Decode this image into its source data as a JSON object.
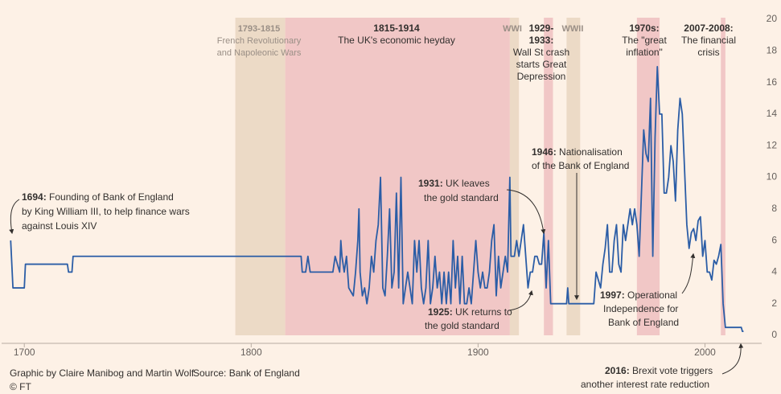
{
  "chart_data": {
    "type": "line",
    "xlim": [
      1690,
      2025
    ],
    "ylim": [
      0,
      20
    ],
    "xticks": [
      1700,
      1800,
      1900,
      2000
    ],
    "yticks": [
      0,
      2,
      4,
      6,
      8,
      10,
      12,
      14,
      16,
      18,
      20
    ],
    "series": [
      {
        "color": "#2b5da6",
        "x": [
          1694,
          1695,
          1699,
          1700,
          1700.5,
          1719,
          1719.5,
          1721,
          1721.5,
          1822,
          1822.5,
          1824,
          1825,
          1826,
          1836,
          1837,
          1839,
          1839.5,
          1840,
          1841,
          1842,
          1843,
          1845,
          1846,
          1847,
          1847.5,
          1848,
          1849,
          1850,
          1851,
          1852,
          1853,
          1854,
          1855,
          1856,
          1857,
          1858,
          1859,
          1860,
          1861,
          1862,
          1863,
          1864,
          1865,
          1866,
          1867,
          1868,
          1869,
          1870,
          1871,
          1872,
          1873,
          1874,
          1875,
          1876,
          1877,
          1878,
          1879,
          1880,
          1881,
          1882,
          1883,
          1884,
          1885,
          1886,
          1887,
          1888,
          1889,
          1890,
          1891,
          1892,
          1893,
          1894,
          1895,
          1896,
          1897,
          1898,
          1899,
          1900,
          1901,
          1902,
          1903,
          1904,
          1905,
          1906,
          1907,
          1908,
          1909,
          1910,
          1911,
          1912,
          1913,
          1914,
          1914.5,
          1916,
          1917,
          1918,
          1919,
          1920,
          1921,
          1922,
          1923,
          1924,
          1925,
          1926,
          1927,
          1928,
          1929,
          1930,
          1931,
          1932,
          1939,
          1939.5,
          1940,
          1951,
          1952,
          1953,
          1954,
          1955,
          1956,
          1957,
          1958,
          1959,
          1960,
          1961,
          1962,
          1963,
          1964,
          1965,
          1966,
          1967,
          1968,
          1969,
          1970,
          1971,
          1972,
          1973,
          1974,
          1975,
          1976,
          1977,
          1978,
          1979,
          1980,
          1981,
          1982,
          1983,
          1984,
          1985,
          1986,
          1987,
          1988,
          1989,
          1990,
          1991,
          1992,
          1993,
          1994,
          1995,
          1996,
          1997,
          1998,
          1999,
          2000,
          2001,
          2002,
          2003,
          2004,
          2005,
          2006,
          2007,
          2008,
          2009,
          2016,
          2016.5,
          2017
        ],
        "values": [
          6,
          3,
          3,
          3,
          4.5,
          4.5,
          4,
          4,
          5,
          5,
          4,
          4,
          5,
          4,
          4,
          5,
          4,
          6,
          5,
          4,
          5,
          3,
          2.5,
          4,
          6,
          8,
          4,
          2.5,
          3,
          2,
          3,
          5,
          4,
          6,
          7,
          10,
          3,
          2.5,
          5,
          8,
          3,
          4,
          9,
          3,
          10,
          2,
          3,
          4,
          3,
          2,
          6,
          4,
          6,
          3,
          2,
          3,
          6,
          2,
          3,
          5,
          3,
          4,
          2,
          4,
          2,
          4,
          2,
          6,
          3,
          5,
          2,
          5,
          2,
          2,
          3,
          2,
          4,
          6,
          4,
          3,
          4,
          3,
          3,
          4,
          6,
          7,
          2.5,
          5,
          3,
          4,
          5,
          4,
          10,
          5,
          5,
          6,
          5,
          6,
          7,
          5,
          3,
          4,
          4,
          5,
          5,
          4.5,
          4.5,
          6.5,
          3,
          6,
          2,
          2,
          3,
          2,
          2,
          4,
          3.5,
          3,
          4.5,
          5.5,
          7,
          4,
          4,
          6,
          7,
          4.5,
          4,
          7,
          6,
          7,
          8,
          7,
          8,
          7,
          5,
          9,
          13,
          11.5,
          11,
          15,
          5,
          12.5,
          17,
          14,
          14,
          9,
          9,
          10,
          12,
          11,
          8.5,
          13,
          15,
          14,
          10.5,
          7,
          5.5,
          6.5,
          6.75,
          6,
          7.25,
          7.5,
          5,
          6,
          4,
          4,
          3.5,
          4.75,
          4.5,
          5,
          5.75,
          2,
          0.5,
          0.5,
          0.25,
          0.25
        ]
      }
    ],
    "periods": [
      {
        "start": 1793,
        "end": 1815,
        "color": "#ecdac6",
        "label_lines": [
          "1793-1815",
          "French Revolutionary",
          "and Napoleonic Wars"
        ]
      },
      {
        "start": 1815,
        "end": 1914,
        "color": "#f1c7c6",
        "label_lines": [
          "1815-1914",
          "The UK's economic heyday"
        ]
      },
      {
        "start": 1914,
        "end": 1918,
        "color": "#ecdac6",
        "label_lines": [
          "WWI"
        ]
      },
      {
        "start": 1929,
        "end": 1933,
        "color": "#f1c7c6",
        "label_lines": [
          "1929-",
          "1933:",
          "Wall St crash",
          "starts Great",
          "Depression"
        ]
      },
      {
        "start": 1939,
        "end": 1945,
        "color": "#ecdac6",
        "label_lines": [
          "WWII"
        ]
      },
      {
        "start": 1970,
        "end": 1980,
        "color": "#f1c7c6",
        "label_lines": [
          "1970s:",
          "The \"great",
          "inflation\""
        ]
      },
      {
        "start": 2007,
        "end": 2009,
        "color": "#f1c7c6",
        "label_lines": [
          "2007-2008:",
          "The financial",
          "crisis"
        ]
      }
    ],
    "annotations": [
      {
        "year": "1694:",
        "lines": [
          " Founding of Bank of England",
          "by King William III, to help finance wars",
          "against Louis XIV"
        ]
      },
      {
        "year": "1931:",
        "lines": [
          " UK leaves",
          "the gold standard"
        ]
      },
      {
        "year": "1946:",
        "lines": [
          " Nationalisation",
          "of the Bank of England"
        ]
      },
      {
        "year": "1925:",
        "lines": [
          " UK returns to",
          "the gold standard"
        ]
      },
      {
        "year": "1997:",
        "lines": [
          " Operational",
          "Independence for",
          "Bank of England"
        ]
      },
      {
        "year": "2016:",
        "lines": [
          " Brexit vote triggers",
          "another interest rate reduction"
        ]
      }
    ],
    "credit": "Graphic by Claire Manibog and Martin Wolf",
    "source": "Source: Bank of England",
    "copyright": "© FT"
  }
}
